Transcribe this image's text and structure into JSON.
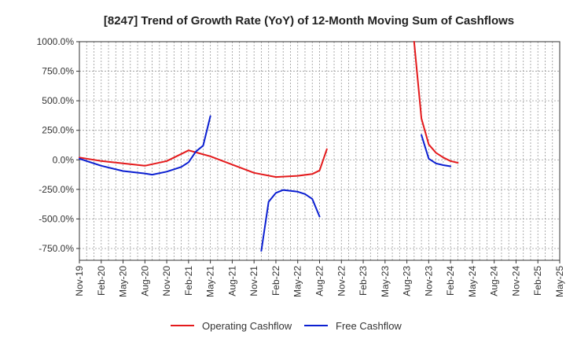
{
  "chart_data": {
    "type": "line",
    "title": "[8247]  Trend of Growth Rate (YoY) of 12-Month Moving Sum of Cashflows",
    "xlabel": "",
    "ylabel": "",
    "ylim": [
      -850,
      1000
    ],
    "y_ticks": [
      1000,
      750,
      500,
      250,
      0,
      -250,
      -500,
      -750
    ],
    "y_tick_labels": [
      "1000.0%",
      "750.0%",
      "500.0%",
      "250.0%",
      "0.0%",
      "-250.0%",
      "-500.0%",
      "-750.0%"
    ],
    "x_ticks": [
      "Nov-19",
      "Feb-20",
      "May-20",
      "Aug-20",
      "Nov-20",
      "Feb-21",
      "May-21",
      "Aug-21",
      "Nov-21",
      "Feb-22",
      "May-22",
      "Aug-22",
      "Nov-22",
      "Feb-23",
      "May-23",
      "Aug-23",
      "Nov-23",
      "Feb-24",
      "May-24",
      "Aug-24",
      "Nov-24",
      "Feb-25",
      "May-25"
    ],
    "x_start": "Nov-19",
    "x_end": "May-25",
    "grid": true,
    "legend": "bottom-center",
    "series": [
      {
        "name": "Operating Cashflow",
        "color": "#e41a1c",
        "points": [
          [
            "Nov-19",
            20
          ],
          [
            "Feb-20",
            -10
          ],
          [
            "May-20",
            -30
          ],
          [
            "Aug-20",
            -50
          ],
          [
            "Nov-20",
            -10
          ],
          [
            "Jan-21",
            50
          ],
          [
            "Feb-21",
            80
          ],
          [
            "May-21",
            30
          ],
          [
            "Aug-21",
            -40
          ],
          [
            "Nov-21",
            -110
          ],
          [
            "Feb-22",
            -145
          ],
          [
            "May-22",
            -135
          ],
          [
            "Jul-22",
            -120
          ],
          [
            "Aug-22",
            -90
          ],
          [
            "Sep-22",
            90
          ]
        ]
      },
      {
        "name": "Operating Cashflow",
        "color": "#e41a1c",
        "points": [
          [
            "Sep-23",
            1000
          ],
          [
            "Oct-23",
            350
          ],
          [
            "Nov-23",
            130
          ],
          [
            "Dec-23",
            60
          ],
          [
            "Jan-24",
            20
          ],
          [
            "Feb-24",
            -10
          ],
          [
            "Mar-24",
            -25
          ]
        ]
      },
      {
        "name": "Free Cashflow",
        "color": "#0b1fd1",
        "points": [
          [
            "Nov-19",
            10
          ],
          [
            "Feb-20",
            -50
          ],
          [
            "May-20",
            -95
          ],
          [
            "Aug-20",
            -115
          ],
          [
            "Sep-20",
            -125
          ],
          [
            "Nov-20",
            -100
          ],
          [
            "Jan-21",
            -60
          ],
          [
            "Feb-21",
            -20
          ],
          [
            "Mar-21",
            70
          ],
          [
            "Apr-21",
            120
          ],
          [
            "May-21",
            370
          ]
        ]
      },
      {
        "name": "Free Cashflow",
        "color": "#0b1fd1",
        "points": [
          [
            "Dec-21",
            -770
          ],
          [
            "Jan-22",
            -355
          ],
          [
            "Feb-22",
            -280
          ],
          [
            "Mar-22",
            -255
          ],
          [
            "May-22",
            -270
          ],
          [
            "Jun-22",
            -290
          ],
          [
            "Jul-22",
            -330
          ],
          [
            "Aug-22",
            -480
          ]
        ]
      },
      {
        "name": "Free Cashflow",
        "color": "#0b1fd1",
        "points": [
          [
            "Oct-23",
            210
          ],
          [
            "Nov-23",
            10
          ],
          [
            "Dec-23",
            -30
          ],
          [
            "Jan-24",
            -45
          ],
          [
            "Feb-24",
            -55
          ]
        ]
      }
    ],
    "legend_entries": [
      {
        "name": "Operating Cashflow",
        "color": "#e41a1c"
      },
      {
        "name": "Free Cashflow",
        "color": "#0b1fd1"
      }
    ]
  }
}
